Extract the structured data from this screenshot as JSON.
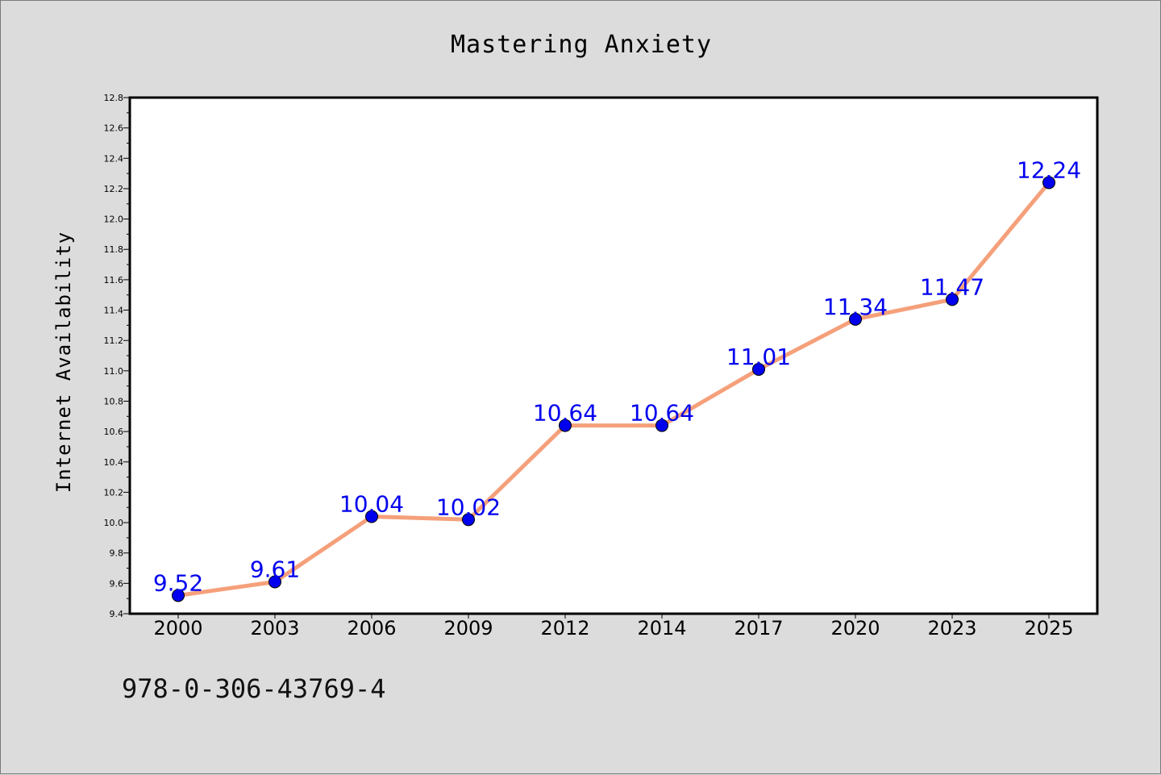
{
  "chart_data": {
    "type": "line",
    "title": "Mastering Anxiety",
    "xlabel": "",
    "ylabel": "Internet Availability",
    "categories": [
      "2000",
      "2003",
      "2006",
      "2009",
      "2012",
      "2014",
      "2017",
      "2020",
      "2023",
      "2025"
    ],
    "series": [
      {
        "values": [
          9.52,
          9.61,
          10.04,
          10.02,
          10.64,
          10.64,
          11.01,
          11.34,
          11.47,
          12.24
        ]
      }
    ],
    "data_labels": [
      "9.52",
      "9.61",
      "10.04",
      "10.02",
      "10.64",
      "10.64",
      "11.01",
      "11.34",
      "11.47",
      "12.24"
    ],
    "ylim": [
      9.4,
      12.8
    ],
    "yticks": [
      "9.4",
      "9.6",
      "9.8",
      "10.0",
      "10.2",
      "10.4",
      "10.6",
      "10.8",
      "11.0",
      "11.2",
      "11.4",
      "11.6",
      "11.8",
      "12.0",
      "12.2",
      "12.4",
      "12.6",
      "12.8"
    ],
    "grid": false,
    "colors": {
      "line": "#f5a07a",
      "marker": "#0000ee",
      "label": "#0000ee",
      "background": "#dcdcdc",
      "plot_bg": "#ffffff"
    }
  },
  "footer": {
    "isbn": "978-0-306-43769-4"
  }
}
